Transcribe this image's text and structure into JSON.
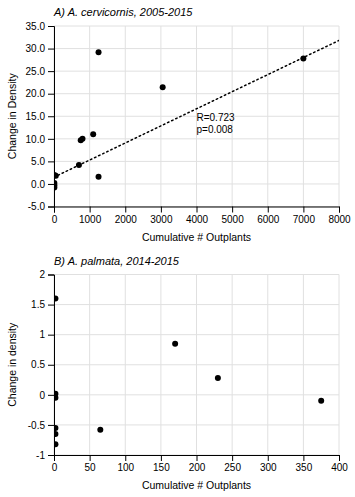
{
  "chart_data": [
    {
      "type": "scatter",
      "title": "A) A. cervicornis, 2005-2015",
      "xlabel": "Cumulative # Outplants",
      "ylabel": "Change in Density",
      "xlim": [
        0,
        8000
      ],
      "ylim": [
        -5,
        35
      ],
      "xticks": [
        0,
        1000,
        2000,
        3000,
        4000,
        5000,
        6000,
        7000,
        8000
      ],
      "yticks": [
        {
          "value": -5.0,
          "label": "-5.0"
        },
        {
          "value": 0.0,
          "label": "0.0"
        },
        {
          "value": 5.0,
          "label": "5.0"
        },
        {
          "value": 10.0,
          "label": "10.0"
        },
        {
          "value": 15.0,
          "label": "15.0"
        },
        {
          "value": 20.0,
          "label": "20.0"
        },
        {
          "value": 25.0,
          "label": "25.0"
        },
        {
          "value": 30.0,
          "label": "30.0"
        },
        {
          "value": 35.0,
          "label": "35.0"
        }
      ],
      "grid": true,
      "series": [
        {
          "type": "scatter",
          "color": "#000000",
          "x": [
            10,
            10,
            10,
            10,
            50,
            700,
            750,
            800,
            1100,
            1250,
            1250,
            3050,
            7000
          ],
          "values": [
            2.0,
            0.2,
            -0.3,
            -0.8,
            1.8,
            4.2,
            9.7,
            10.0,
            11.0,
            1.6,
            29.2,
            21.4,
            27.8
          ]
        },
        {
          "type": "line",
          "color": "black",
          "line_style": "dotted",
          "x": [
            0,
            8000
          ],
          "values": [
            1.5,
            31.8
          ]
        }
      ],
      "annotations": [
        {
          "text": "R=0.723\np=0.008",
          "x": 4000,
          "y": 16
        }
      ]
    },
    {
      "type": "scatter",
      "title": "B) A. palmata, 2014-2015",
      "xlabel": "Cumulative # Outplants",
      "ylabel": "Change in density",
      "xlim": [
        0,
        400
      ],
      "ylim": [
        -1,
        2
      ],
      "xticks": [
        0,
        50,
        100,
        150,
        200,
        250,
        300,
        350,
        400
      ],
      "yticks": [
        -1,
        -0.5,
        0,
        0.5,
        1,
        1.5,
        2
      ],
      "grid": true,
      "series": [
        {
          "type": "scatter",
          "color": "#000000",
          "x": [
            2,
            2,
            2,
            2,
            2,
            2,
            65,
            170,
            230,
            375
          ],
          "values": [
            1.6,
            0.02,
            -0.05,
            -0.55,
            -0.65,
            -0.82,
            -0.58,
            0.85,
            0.28,
            -0.1
          ]
        }
      ]
    }
  ]
}
